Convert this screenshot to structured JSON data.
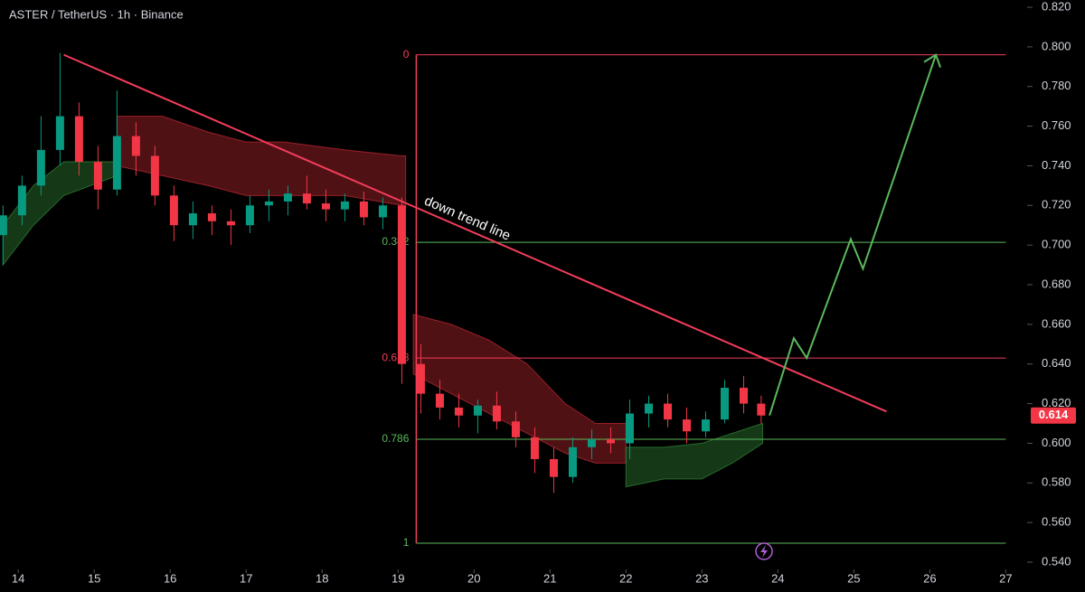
{
  "chart_data": {
    "type": "candlestick",
    "title": "ASTER / TetherUS · 1h · Binance",
    "annotation": "down trend line",
    "x": [
      13.8,
      14.05,
      14.3,
      14.55,
      14.8,
      15.05,
      15.3,
      15.55,
      15.8,
      16.05,
      16.3,
      16.55,
      16.8,
      17.05,
      17.3,
      17.55,
      17.8,
      18.05,
      18.3,
      18.55,
      18.8,
      19.05,
      19.3,
      19.55,
      19.8,
      20.05,
      20.3,
      20.55,
      20.8,
      21.05,
      21.3,
      21.55,
      21.8,
      22.05,
      22.3,
      22.55,
      22.8,
      23.05,
      23.3,
      23.55,
      23.78
    ],
    "open": [
      0.705,
      0.715,
      0.73,
      0.748,
      0.765,
      0.742,
      0.728,
      0.755,
      0.745,
      0.725,
      0.71,
      0.716,
      0.712,
      0.71,
      0.72,
      0.722,
      0.726,
      0.721,
      0.718,
      0.722,
      0.714,
      0.72,
      0.64,
      0.625,
      0.618,
      0.614,
      0.619,
      0.611,
      0.603,
      0.592,
      0.583,
      0.598,
      0.602,
      0.6,
      0.615,
      0.62,
      0.612,
      0.606,
      0.612,
      0.628,
      0.62
    ],
    "high": [
      0.72,
      0.735,
      0.765,
      0.797,
      0.772,
      0.75,
      0.778,
      0.762,
      0.75,
      0.73,
      0.722,
      0.72,
      0.718,
      0.725,
      0.728,
      0.73,
      0.735,
      0.728,
      0.726,
      0.727,
      0.724,
      0.724,
      0.65,
      0.632,
      0.625,
      0.622,
      0.626,
      0.616,
      0.608,
      0.598,
      0.603,
      0.607,
      0.608,
      0.622,
      0.624,
      0.625,
      0.618,
      0.616,
      0.632,
      0.634,
      0.624
    ],
    "low": [
      0.69,
      0.71,
      0.725,
      0.74,
      0.735,
      0.718,
      0.725,
      0.735,
      0.72,
      0.702,
      0.703,
      0.705,
      0.7,
      0.706,
      0.712,
      0.715,
      0.718,
      0.712,
      0.712,
      0.71,
      0.708,
      0.63,
      0.615,
      0.612,
      0.608,
      0.605,
      0.607,
      0.598,
      0.585,
      0.575,
      0.58,
      0.592,
      0.595,
      0.592,
      0.608,
      0.608,
      0.6,
      0.603,
      0.61,
      0.615,
      0.61
    ],
    "close": [
      0.715,
      0.73,
      0.748,
      0.765,
      0.742,
      0.728,
      0.755,
      0.745,
      0.725,
      0.71,
      0.716,
      0.712,
      0.71,
      0.72,
      0.722,
      0.726,
      0.721,
      0.718,
      0.722,
      0.714,
      0.72,
      0.64,
      0.625,
      0.618,
      0.614,
      0.619,
      0.611,
      0.603,
      0.592,
      0.583,
      0.598,
      0.602,
      0.6,
      0.615,
      0.62,
      0.612,
      0.606,
      0.612,
      0.628,
      0.62,
      0.614
    ],
    "up_color": "#089981",
    "down_color": "#f23645",
    "bands": [
      {
        "color": "#b2262f",
        "x": [
          15.3,
          15.9,
          16.5,
          17.0,
          17.5,
          18.3,
          19.05,
          19.1
        ],
        "upper": [
          0.765,
          0.765,
          0.757,
          0.752,
          0.752,
          0.748,
          0.745,
          0.745
        ],
        "lower": [
          0.74,
          0.735,
          0.73,
          0.725,
          0.725,
          0.725,
          0.72,
          0.72
        ]
      },
      {
        "color": "#b2262f",
        "x": [
          19.2,
          19.7,
          20.2,
          20.7,
          21.2,
          21.6,
          22.0
        ],
        "upper": [
          0.665,
          0.66,
          0.652,
          0.64,
          0.62,
          0.61,
          0.61
        ],
        "lower": [
          0.635,
          0.625,
          0.615,
          0.605,
          0.595,
          0.59,
          0.59
        ]
      },
      {
        "color": "#2e7d32",
        "x": [
          13.8,
          14.2,
          14.6,
          15.3
        ],
        "upper": [
          0.71,
          0.73,
          0.742,
          0.742
        ],
        "lower": [
          0.69,
          0.71,
          0.725,
          0.735
        ]
      },
      {
        "color": "#2e7d32",
        "x": [
          22.0,
          22.5,
          23.0,
          23.4,
          23.8
        ],
        "upper": [
          0.598,
          0.598,
          0.6,
          0.605,
          0.61
        ],
        "lower": [
          0.578,
          0.582,
          0.582,
          0.59,
          0.6
        ]
      }
    ],
    "trend_line": {
      "color": "#f23d5b",
      "x": [
        14.6,
        25.43
      ],
      "y": [
        0.796,
        0.616
      ]
    },
    "projection": {
      "color": "#5cb85c",
      "x": [
        23.89,
        24.21,
        24.38,
        24.96,
        25.12,
        26.08
      ],
      "y": [
        0.614,
        0.653,
        0.643,
        0.703,
        0.688,
        0.796
      ]
    },
    "fib": {
      "x": [
        19.24,
        27.0
      ],
      "ratios": [
        0,
        0.382,
        0.618,
        0.786,
        1
      ],
      "prices": [
        0.796,
        0.7014,
        0.643,
        0.602,
        0.5496
      ],
      "colors": [
        "#f23d5b",
        "#5cb85c",
        "#f23d5b",
        "#5cb85c",
        "#5cb85c"
      ]
    },
    "last_price": {
      "value": 0.614,
      "label": "0.614"
    },
    "xlim": [
      13.76,
      27.21
    ],
    "ylim": [
      0.54,
      0.82
    ],
    "xticks": [
      14,
      15,
      16,
      17,
      18,
      19,
      20,
      21,
      22,
      23,
      24,
      25,
      26,
      27
    ],
    "yticks": [
      {
        "value": 0.54,
        "label": "0.540"
      },
      {
        "value": 0.56,
        "label": "0.560"
      },
      {
        "value": 0.58,
        "label": "0.580"
      },
      {
        "value": 0.6,
        "label": "0.600"
      },
      {
        "value": 0.62,
        "label": "0.620"
      },
      {
        "value": 0.64,
        "label": "0.640"
      },
      {
        "value": 0.66,
        "label": "0.660"
      },
      {
        "value": 0.68,
        "label": "0.680"
      },
      {
        "value": 0.7,
        "label": "0.700"
      },
      {
        "value": 0.72,
        "label": "0.720"
      },
      {
        "value": 0.74,
        "label": "0.740"
      },
      {
        "value": 0.76,
        "label": "0.760"
      },
      {
        "value": 0.78,
        "label": "0.780"
      },
      {
        "value": 0.8,
        "label": "0.800"
      },
      {
        "value": 0.82,
        "label": "0.820"
      }
    ]
  }
}
